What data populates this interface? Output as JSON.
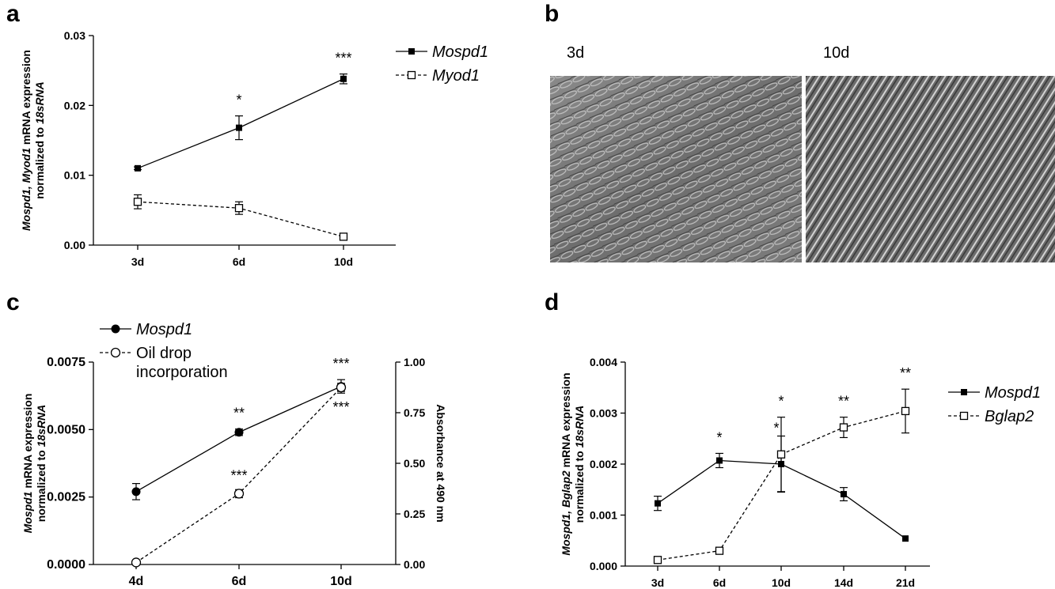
{
  "panels": {
    "a": {
      "letter": "a"
    },
    "b": {
      "letter": "b",
      "images": [
        {
          "label": "3d"
        },
        {
          "label": "10d"
        }
      ]
    },
    "c": {
      "letter": "c"
    },
    "d": {
      "letter": "d"
    }
  },
  "chart_data": [
    {
      "id": "a",
      "type": "line",
      "categories": [
        "3d",
        "6d",
        "10d"
      ],
      "ylim": [
        0,
        0.03
      ],
      "yticks": [
        0.0,
        0.01,
        0.02,
        0.03
      ],
      "ytick_labels": [
        "0.00",
        "0.01",
        "0.02",
        "0.03"
      ],
      "ylabel_lines": [
        [
          {
            "t": "Mospd1, ",
            "i": true
          },
          {
            "t": "Myod1",
            "i": true
          },
          {
            "t": " mRNA expression",
            "i": false
          }
        ],
        [
          {
            "t": "normalized  to ",
            "i": false
          },
          {
            "t": "18sRNA",
            "i": true
          }
        ]
      ],
      "legend_placement": "right",
      "series": [
        {
          "name": "Mospd1",
          "marker": "filled-square",
          "dash": false,
          "values": [
            0.011,
            0.0168,
            0.0238
          ],
          "errors": [
            0.0002,
            0.0017,
            0.0007
          ],
          "stars": [
            "",
            "*",
            "***"
          ]
        },
        {
          "name": "Myod1",
          "marker": "open-square",
          "dash": true,
          "values": [
            0.0062,
            0.0053,
            0.0012
          ],
          "errors": [
            0.001,
            0.0009,
            0.0002
          ],
          "stars": [
            "",
            "",
            ""
          ]
        }
      ]
    },
    {
      "id": "c",
      "type": "line",
      "categories": [
        "4d",
        "6d",
        "10d"
      ],
      "ylim": [
        0,
        0.0075
      ],
      "yticks": [
        0,
        0.0025,
        0.005,
        0.0075
      ],
      "ytick_labels": [
        "0.0000",
        "0.0025",
        "0.0050",
        "0.0075"
      ],
      "y2lim": [
        0,
        1.0
      ],
      "y2ticks": [
        0,
        0.25,
        0.5,
        0.75,
        1.0
      ],
      "y2tick_labels": [
        "0.00",
        "0.25",
        "0.50",
        "0.75",
        "1.00"
      ],
      "ylabel_lines": [
        [
          {
            "t": "Mospd1",
            "i": true
          },
          {
            "t": " mRNA expression",
            "i": false
          }
        ],
        [
          {
            "t": "normalized  to ",
            "i": false
          },
          {
            "t": "18sRNA",
            "i": true
          }
        ]
      ],
      "y2label": "Absorbance at 490 nm",
      "legend_placement": "top-left",
      "series": [
        {
          "name": "Mospd1",
          "marker": "filled-circle",
          "dash": false,
          "axis": "left",
          "values": [
            0.0027,
            0.0049,
            0.0066
          ],
          "errors": [
            0.0003,
            0.00012,
            0.00025
          ],
          "stars": [
            "",
            "**",
            "***"
          ]
        },
        {
          "name": "Oil drop incorporation",
          "name_lines": [
            "Oil drop",
            "incorporation"
          ],
          "marker": "open-circle",
          "dash": true,
          "axis": "right",
          "values": [
            0.01,
            0.35,
            0.875
          ],
          "errors": [
            0.0,
            0.02,
            0.02
          ],
          "stars": [
            "",
            "***",
            "***"
          ]
        }
      ]
    },
    {
      "id": "d",
      "type": "line",
      "categories": [
        "3d",
        "6d",
        "10d",
        "14d",
        "21d"
      ],
      "ylim": [
        0,
        0.004
      ],
      "yticks": [
        0,
        0.001,
        0.002,
        0.003,
        0.004
      ],
      "ytick_labels": [
        "0.000",
        "0.001",
        "0.002",
        "0.003",
        "0.004"
      ],
      "ylabel_lines": [
        [
          {
            "t": "Mospd1, ",
            "i": true
          },
          {
            "t": "Bglap2",
            "i": true
          },
          {
            "t": " mRNA expression",
            "i": false
          }
        ],
        [
          {
            "t": "normalized  to ",
            "i": false
          },
          {
            "t": "18sRNA",
            "i": true
          }
        ]
      ],
      "legend_placement": "right",
      "series": [
        {
          "name": "Mospd1",
          "marker": "filled-square",
          "dash": false,
          "values": [
            0.00123,
            0.00207,
            0.002,
            0.00141,
            0.00054
          ],
          "errors": [
            0.00014,
            0.00014,
            0.00055,
            0.00013,
            0.0
          ],
          "stars": [
            "",
            "*",
            "*",
            "",
            ""
          ]
        },
        {
          "name": "Bglap2",
          "marker": "open-square",
          "dash": true,
          "values": [
            0.00012,
            0.0003,
            0.00219,
            0.00272,
            0.00304
          ],
          "errors": [
            0.0,
            0.0,
            0.00073,
            0.0002,
            0.00043
          ],
          "stars": [
            "",
            "",
            "*",
            "**",
            "**"
          ]
        }
      ]
    }
  ]
}
